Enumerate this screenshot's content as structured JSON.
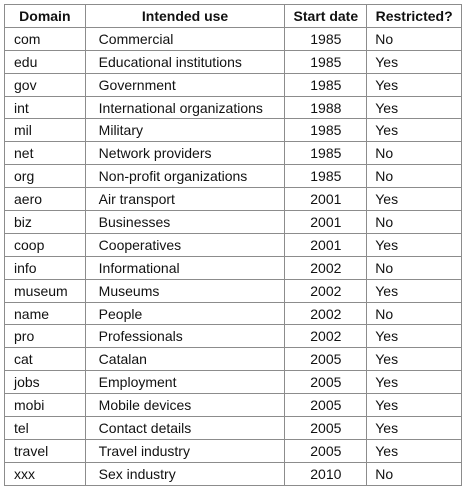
{
  "table": {
    "headers": [
      "Domain",
      "Intended use",
      "Start date",
      "Restricted?"
    ],
    "rows": [
      [
        "com",
        "Commercial",
        "1985",
        "No"
      ],
      [
        "edu",
        "Educational institutions",
        "1985",
        "Yes"
      ],
      [
        "gov",
        "Government",
        "1985",
        "Yes"
      ],
      [
        "int",
        "International organizations",
        "1988",
        "Yes"
      ],
      [
        "mil",
        "Military",
        "1985",
        "Yes"
      ],
      [
        "net",
        "Network providers",
        "1985",
        "No"
      ],
      [
        "org",
        "Non-profit organizations",
        "1985",
        "No"
      ],
      [
        "aero",
        "Air transport",
        "2001",
        "Yes"
      ],
      [
        "biz",
        "Businesses",
        "2001",
        "No"
      ],
      [
        "coop",
        "Cooperatives",
        "2001",
        "Yes"
      ],
      [
        "info",
        "Informational",
        "2002",
        "No"
      ],
      [
        "museum",
        "Museums",
        "2002",
        "Yes"
      ],
      [
        "name",
        "People",
        "2002",
        "No"
      ],
      [
        "pro",
        "Professionals",
        "2002",
        "Yes"
      ],
      [
        "cat",
        "Catalan",
        "2005",
        "Yes"
      ],
      [
        "jobs",
        "Employment",
        "2005",
        "Yes"
      ],
      [
        "mobi",
        "Mobile devices",
        "2005",
        "Yes"
      ],
      [
        "tel",
        "Contact details",
        "2005",
        "Yes"
      ],
      [
        "travel",
        "Travel industry",
        "2005",
        "Yes"
      ],
      [
        "xxx",
        "Sex industry",
        "2010",
        "No"
      ]
    ]
  }
}
